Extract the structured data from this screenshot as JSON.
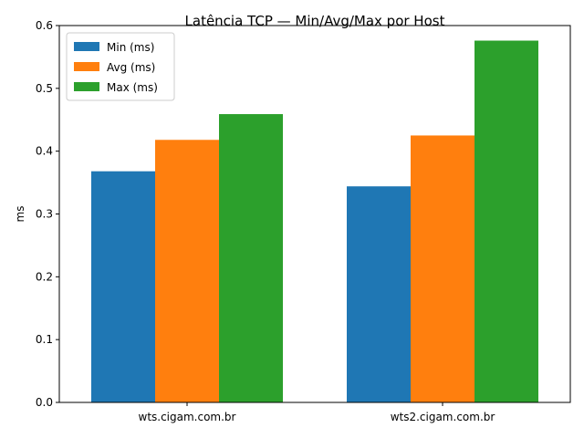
{
  "chart_data": {
    "type": "bar",
    "title": "Latência TCP — Min/Avg/Max por Host",
    "xlabel": "",
    "ylabel": "ms",
    "categories": [
      "wts.cigam.com.br",
      "wts2.cigam.com.br"
    ],
    "series": [
      {
        "name": "Min (ms)",
        "values": [
          0.368,
          0.344
        ],
        "color": "#1f77b4"
      },
      {
        "name": "Avg (ms)",
        "values": [
          0.418,
          0.425
        ],
        "color": "#ff7f0e"
      },
      {
        "name": "Max (ms)",
        "values": [
          0.459,
          0.576
        ],
        "color": "#2ca02c"
      }
    ],
    "ylim": [
      0,
      0.6
    ],
    "yticks": [
      "0.0",
      "0.1",
      "0.2",
      "0.3",
      "0.4",
      "0.5",
      "0.6"
    ],
    "grid": false,
    "legend": "top-left"
  }
}
